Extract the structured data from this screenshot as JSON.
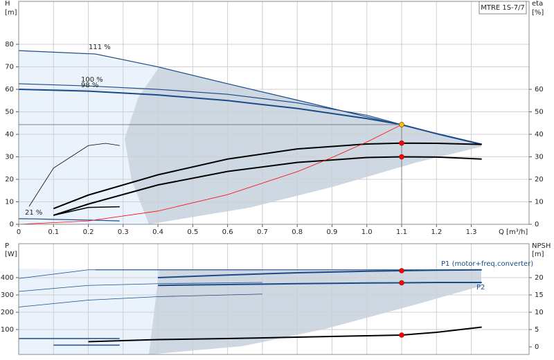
{
  "chart_data": [
    {
      "type": "line",
      "title": "MTRE 1S-7/7",
      "xlabel": "Q [m³/h]",
      "ylabel": [
        "H",
        "[m]"
      ],
      "y2label": [
        "eta",
        "[%]"
      ],
      "xlim": [
        0,
        1.466
      ],
      "ylim": [
        0,
        99.1
      ],
      "y2lim": [
        0,
        99.1
      ],
      "xticks": [
        0,
        0.1,
        0.2,
        0.3,
        0.4,
        0.5,
        0.6,
        0.7,
        0.8,
        0.9,
        {
          "value": 1,
          "label": "1.0"
        },
        1.1,
        1.2,
        1.3
      ],
      "yticks": [
        0,
        10,
        20,
        30,
        40,
        50,
        60,
        70,
        80
      ],
      "y2ticks": [
        0,
        10,
        20,
        30,
        40,
        50,
        60
      ],
      "grid": true,
      "series": [
        {
          "name": "111 %",
          "color": "#1a4a8a",
          "width": 1.2,
          "x": [
            0,
            0.22,
            0.4,
            0.6,
            0.8,
            1.0,
            1.1,
            1.2,
            1.33
          ],
          "values": [
            77.2,
            75.7,
            70,
            62.5,
            55.2,
            47.8,
            44.1,
            40.4,
            35.7
          ]
        },
        {
          "name": "100 %",
          "color": "#1a4a8a",
          "width": 1.2,
          "x": [
            0,
            0.2,
            0.4,
            0.6,
            0.8,
            1.0,
            1.1,
            1.2,
            1.33
          ],
          "values": [
            62.5,
            61.5,
            60,
            57.8,
            54,
            48.5,
            44.3,
            40.3,
            35.5
          ]
        },
        {
          "name": "98 %",
          "color": "#1a4a8a",
          "width": 2,
          "x": [
            0,
            0.2,
            0.4,
            0.6,
            0.8,
            1.0,
            1.1,
            1.2,
            1.33
          ],
          "values": [
            60,
            59.2,
            57.5,
            55,
            51.5,
            47,
            44.3,
            40.3,
            35.5
          ]
        },
        {
          "name": "21 %",
          "color": "#1a4a8a",
          "width": 1.2,
          "x": [
            0,
            0.05,
            0.1,
            0.2,
            0.29
          ],
          "values": [
            2.5,
            2.4,
            2.2,
            1.9,
            1.5
          ]
        },
        {
          "color": "#000000",
          "width": 0.8,
          "axis": "y2",
          "x": [
            0.03,
            0.1,
            0.2,
            0.25,
            0.29
          ],
          "values": [
            8,
            25,
            35,
            36,
            35
          ]
        },
        {
          "color": "#000000",
          "width": 2,
          "axis": "y2",
          "x": [
            0.1,
            0.2,
            0.4,
            0.6,
            0.8,
            1.0,
            1.1,
            1.2,
            1.33
          ],
          "values": [
            7,
            13,
            22,
            29,
            33.5,
            35.7,
            36.1,
            36,
            35.5
          ]
        },
        {
          "color": "#000000",
          "width": 2,
          "axis": "y2",
          "x": [
            0.1,
            0.2,
            0.4,
            0.6,
            0.8,
            1.0,
            1.1,
            1.2,
            1.33
          ],
          "values": [
            4,
            9,
            17.5,
            23.5,
            27.5,
            29.7,
            30,
            29.9,
            29
          ]
        },
        {
          "color": "#000000",
          "width": 1.5,
          "axis": "y2",
          "x": [
            0.1,
            0.2,
            0.29
          ],
          "values": [
            4,
            7.5,
            7.8
          ]
        },
        {
          "color": "#ff0000",
          "width": 0.8,
          "x": [
            0,
            0.2,
            0.4,
            0.6,
            0.8,
            0.9,
            1.0,
            1.1
          ],
          "values": [
            0,
            1.5,
            5.9,
            13.2,
            23.4,
            29.7,
            36.6,
            44.3
          ]
        }
      ],
      "points": [
        {
          "x": 1.1,
          "value": 44.3,
          "color": "#f5c400",
          "guide": true
        },
        {
          "x": 1.1,
          "value": 36.1,
          "color": "#ff0000",
          "axis": "y2"
        },
        {
          "x": 1.1,
          "value": 30,
          "color": "#ff0000",
          "axis": "y2"
        }
      ]
    },
    {
      "type": "line",
      "ylabel": [
        "P",
        "[W]"
      ],
      "y2label": [
        "NPSH",
        "[m]"
      ],
      "xlim": [
        0,
        1.466
      ],
      "ylim": [
        -44,
        596
      ],
      "y2lim": [
        -2.2,
        29.8
      ],
      "yticks": [
        100,
        200,
        300,
        400
      ],
      "y2ticks": [
        0,
        5,
        10,
        15,
        20
      ],
      "grid": true,
      "series": [
        {
          "name": "P1 (motor+freq.converter)",
          "color": "#1a4a8a",
          "width": 2,
          "x": [
            0.4,
            0.6,
            0.8,
            1.0,
            1.1,
            1.2,
            1.33
          ],
          "values": [
            400,
            415,
            428,
            437,
            440,
            443,
            445
          ]
        },
        {
          "name": "P2",
          "color": "#1a4a8a",
          "width": 2,
          "x": [
            0.4,
            0.6,
            0.8,
            1.0,
            1.1,
            1.2,
            1.33
          ],
          "values": [
            355,
            360,
            365,
            369,
            370,
            372,
            372
          ]
        },
        {
          "color": "#1a4a8a",
          "width": 1,
          "x": [
            0.22,
            1.33
          ],
          "values": [
            445,
            445
          ]
        },
        {
          "color": "#1a4a8a",
          "width": 0.8,
          "x": [
            0,
            0.2,
            0.4,
            0.7
          ],
          "values": [
            395,
            445,
            445,
            445
          ]
        },
        {
          "color": "#1a4a8a",
          "width": 0.8,
          "x": [
            0,
            0.2,
            0.4,
            0.7
          ],
          "values": [
            320,
            355,
            365,
            372
          ]
        },
        {
          "color": "#1a4a8a",
          "width": 0.8,
          "x": [
            0,
            0.2,
            0.4,
            0.7
          ],
          "values": [
            230,
            270,
            290,
            305
          ]
        },
        {
          "color": "#1a4a8a",
          "width": 1.5,
          "x": [
            0,
            0.29
          ],
          "values": [
            48,
            48
          ]
        },
        {
          "color": "#1a4a8a",
          "width": 1.5,
          "x": [
            0.1,
            0.29
          ],
          "values": [
            10,
            10
          ]
        },
        {
          "color": "#000000",
          "width": 2,
          "axis": "y2",
          "x": [
            0.2,
            0.4,
            0.6,
            0.8,
            1.0,
            1.1,
            1.2,
            1.33
          ],
          "values": [
            1.5,
            2.1,
            2.4,
            2.8,
            3.2,
            3.4,
            4.2,
            5.7
          ]
        }
      ],
      "points": [
        {
          "x": 1.1,
          "value": 440,
          "color": "#ff0000"
        },
        {
          "x": 1.1,
          "value": 370,
          "color": "#ff0000"
        },
        {
          "x": 1.1,
          "value": 3.4,
          "color": "#ff0000",
          "axis": "y2"
        }
      ]
    }
  ]
}
